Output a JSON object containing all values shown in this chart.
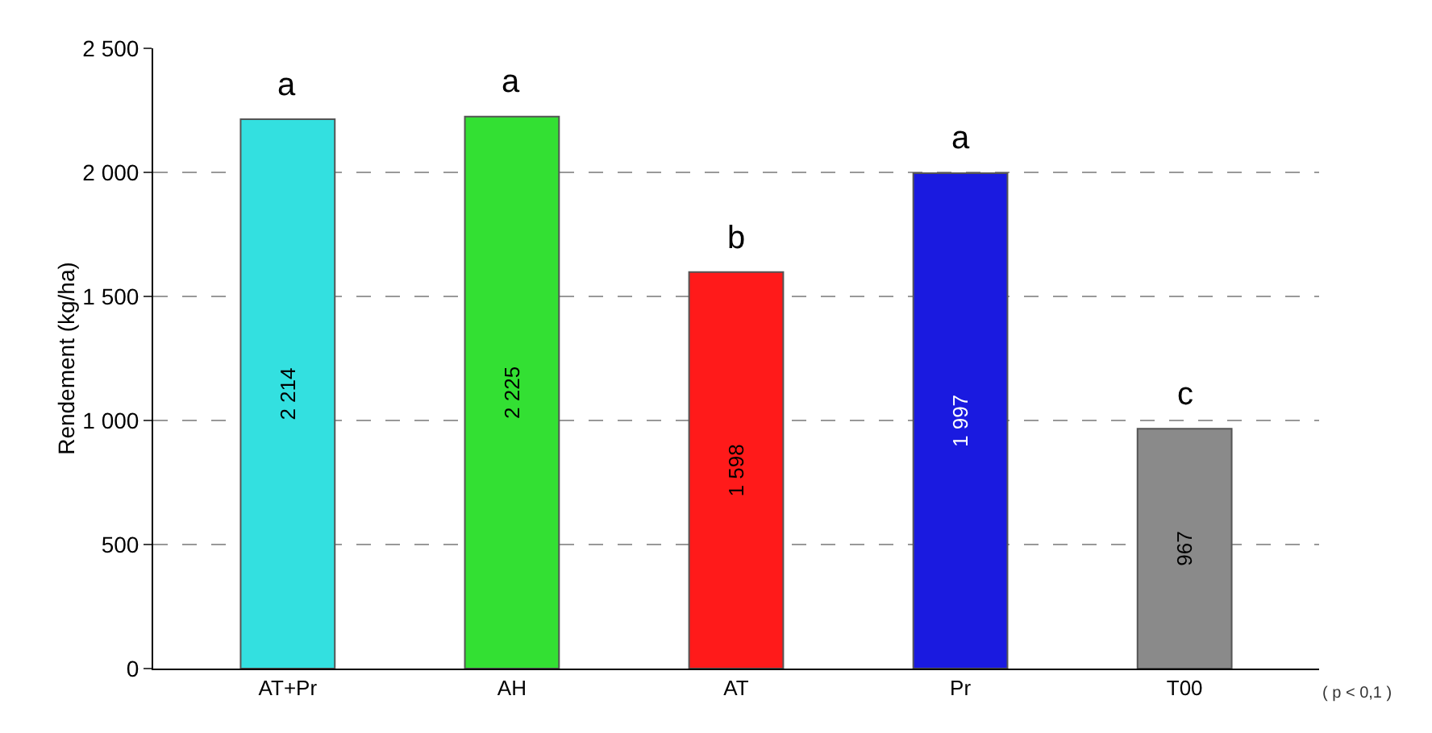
{
  "chart_data": {
    "type": "bar",
    "ylabel": "Rendement (kg/ha)",
    "categories": [
      "AT+Pr",
      "AH",
      "AT",
      "Pr",
      "T00"
    ],
    "values": [
      2214,
      2225,
      1598,
      1997,
      967
    ],
    "colors": [
      "#33e0e0",
      "#33e033",
      "#ff1a1a",
      "#1a1ae0",
      "#8a8a8a"
    ],
    "value_labels": [
      "2 214",
      "2 225",
      "1 598",
      "1 997",
      "967"
    ],
    "ylim": [
      0,
      2500
    ],
    "yticks": [
      0,
      500,
      {
        "value": 1000,
        "label": "1 000"
      },
      {
        "value": 1500,
        "label": "1 500"
      },
      {
        "value": 2000,
        "label": "2 000"
      },
      {
        "value": 2500,
        "label": "2 500"
      }
    ],
    "grid": "y",
    "annotations": [
      {
        "text": "a",
        "x": "AT+Pr",
        "y": 2214
      },
      {
        "text": "a",
        "x": "AH",
        "y": 2225
      },
      {
        "text": "b",
        "x": "AT",
        "y": 1598
      },
      {
        "text": "a",
        "x": "Pr",
        "y": 1997
      },
      {
        "text": "c",
        "x": "T00",
        "y": 967
      },
      "( p < 0,1 )"
    ]
  }
}
